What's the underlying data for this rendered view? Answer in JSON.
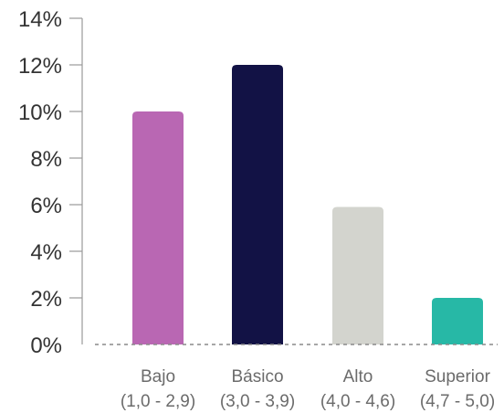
{
  "chart_data": {
    "type": "bar",
    "title": "",
    "xlabel": "",
    "ylabel": "",
    "ylim": [
      0,
      14
    ],
    "yticks": [
      0,
      2,
      4,
      6,
      8,
      10,
      12,
      14
    ],
    "ytick_labels": [
      "0%",
      "2%",
      "4%",
      "6%",
      "8%",
      "10%",
      "12%",
      "14%"
    ],
    "categories": [
      {
        "name": "Bajo",
        "range": "(1,0 - 2,9)"
      },
      {
        "name": "Básico",
        "range": "(3,0 - 3,9)"
      },
      {
        "name": "Alto",
        "range": "(4,0 - 4,6)"
      },
      {
        "name": "Superior",
        "range": "(4,7 - 5,0)"
      }
    ],
    "values": [
      10,
      12,
      5.9,
      2
    ],
    "colors": [
      "#b967b3",
      "#121245",
      "#d3d4ce",
      "#27b8a6"
    ],
    "grid": false,
    "legend": "none",
    "baseline_style": "dashed"
  }
}
